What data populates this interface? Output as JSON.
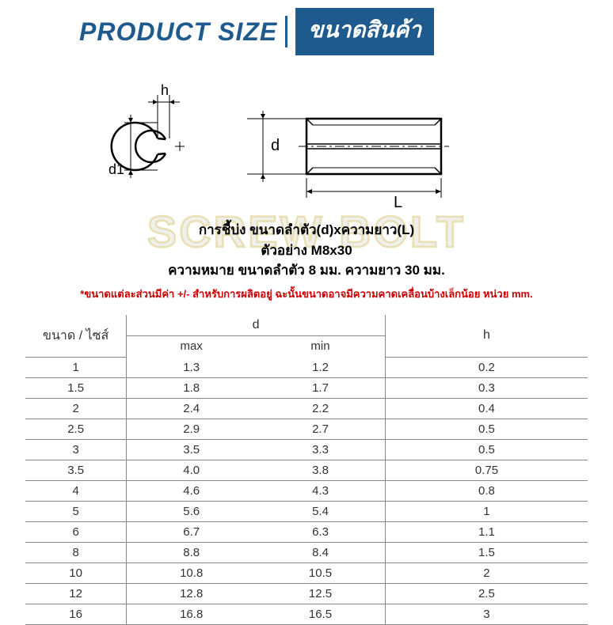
{
  "header": {
    "title_en": "PRODUCT SIZE",
    "title_th": "ขนาดสินค้า",
    "title_color": "#1e5a8e",
    "badge_bg": "#1e5a8e",
    "badge_text_color": "#ffffff"
  },
  "diagram": {
    "labels": {
      "h": "h",
      "d1": "d1",
      "d": "d",
      "L": "L"
    },
    "stroke_color": "#000000",
    "background_color": "#ffffff"
  },
  "watermark": {
    "text": "SCREW BOLT",
    "color": "rgba(200,200,180,0.28)"
  },
  "description": {
    "line1": "การชี้บ่ง ขนาดลำตัว(d)xความยาว(L)",
    "line2": "ตัวอย่าง M8x30",
    "line3": "ความหมาย ขนาดลำตัว 8 มม. ความยาว 30 มม.",
    "text_color": "#000000"
  },
  "disclaimer": {
    "text": "*ขนาดแต่ละส่วนมีค่า +/- สำหรับการผลิตอยู่ ฉะนั้นขนาดอาจมีความคาดเคลื่อนบ้างเล็กน้อย หน่วย mm.",
    "color": "#cc0000"
  },
  "table": {
    "columns": {
      "size": "ขนาด / ไซส์",
      "d": "d",
      "d_max": "max",
      "d_min": "min",
      "h": "h"
    },
    "rows": [
      {
        "size": "1",
        "max": "1.3",
        "min": "1.2",
        "h": "0.2"
      },
      {
        "size": "1.5",
        "max": "1.8",
        "min": "1.7",
        "h": "0.3"
      },
      {
        "size": "2",
        "max": "2.4",
        "min": "2.2",
        "h": "0.4"
      },
      {
        "size": "2.5",
        "max": "2.9",
        "min": "2.7",
        "h": "0.5"
      },
      {
        "size": "3",
        "max": "3.5",
        "min": "3.3",
        "h": "0.5"
      },
      {
        "size": "3.5",
        "max": "4.0",
        "min": "3.8",
        "h": "0.75"
      },
      {
        "size": "4",
        "max": "4.6",
        "min": "4.3",
        "h": "0.8"
      },
      {
        "size": "5",
        "max": "5.6",
        "min": "5.4",
        "h": "1"
      },
      {
        "size": "6",
        "max": "6.7",
        "min": "6.3",
        "h": "1.1"
      },
      {
        "size": "8",
        "max": "8.8",
        "min": "8.4",
        "h": "1.5"
      },
      {
        "size": "10",
        "max": "10.8",
        "min": "10.5",
        "h": "2"
      },
      {
        "size": "12",
        "max": "12.8",
        "min": "12.5",
        "h": "2.5"
      },
      {
        "size": "16",
        "max": "16.8",
        "min": "16.5",
        "h": "3"
      }
    ],
    "border_color": "#888888",
    "text_color": "#333333",
    "font_size": 15
  }
}
